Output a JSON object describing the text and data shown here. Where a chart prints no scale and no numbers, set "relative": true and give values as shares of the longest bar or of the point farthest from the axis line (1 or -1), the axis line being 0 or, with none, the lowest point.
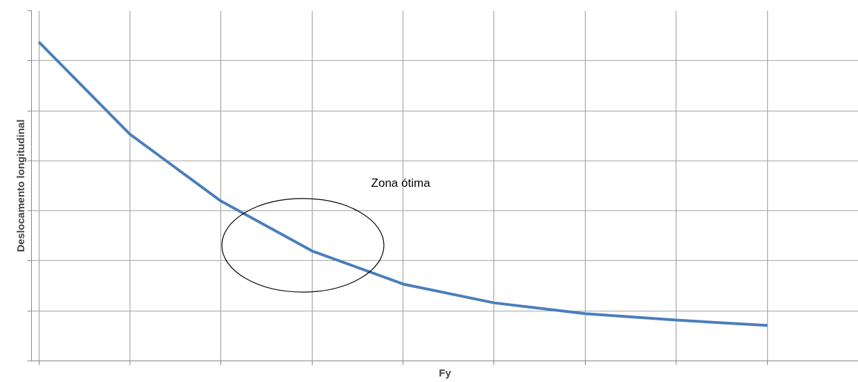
{
  "chart_data": {
    "type": "line",
    "relative": true,
    "xlabel": "Fy",
    "ylabel": "Deslocamento longitudinal",
    "categories": [
      null,
      null,
      null,
      null,
      null,
      null,
      null,
      null,
      null,
      null
    ],
    "series": [
      {
        "color": "#4a7ebb",
        "values": [
          1,
          0.711,
          0.501,
          0.345,
          0.241,
          0.182,
          0.148,
          0.128,
          0.111,
          null
        ]
      }
    ],
    "annotations": [
      "Zona ótima"
    ],
    "grid": true,
    "marker": "none",
    "line_style": "solid",
    "tick_labels": false
  }
}
